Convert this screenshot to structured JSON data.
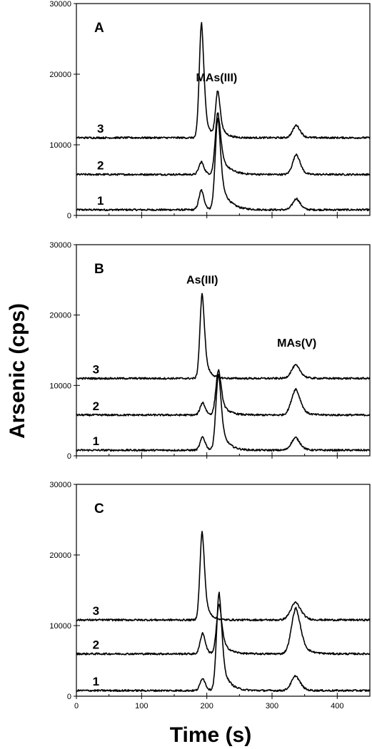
{
  "figure": {
    "ylabel": "Arsenic (cps)",
    "xlabel": "Time (s)"
  },
  "chart_data": [
    {
      "type": "line",
      "panel": "A",
      "xlim": [
        0,
        450
      ],
      "ylim": [
        0,
        30000
      ],
      "x_ticks": [
        0,
        100,
        200,
        300,
        400
      ],
      "y_ticks": [
        0,
        10000,
        20000,
        30000
      ],
      "annotations": [
        {
          "text": "MAs(III)",
          "x": 215,
          "y": 19000
        }
      ],
      "series": [
        {
          "name": "1",
          "baseline": 800,
          "label_x": 37,
          "peaks": [
            {
              "center": 192,
              "height": 2800,
              "width": 4,
              "tail": 5
            },
            {
              "center": 217,
              "height": 13000,
              "width": 4,
              "tail": 12
            },
            {
              "center": 338,
              "height": 1600,
              "width": 6,
              "tail": 6
            }
          ]
        },
        {
          "name": "2",
          "baseline": 5800,
          "label_x": 37,
          "peaks": [
            {
              "center": 192,
              "height": 1800,
              "width": 4,
              "tail": 5
            },
            {
              "center": 217,
              "height": 8800,
              "width": 4,
              "tail": 12
            },
            {
              "center": 338,
              "height": 2900,
              "width": 6,
              "tail": 6
            }
          ]
        },
        {
          "name": "3",
          "baseline": 11000,
          "label_x": 37,
          "peaks": [
            {
              "center": 192,
              "height": 16300,
              "width": 3.5,
              "tail": 7
            },
            {
              "center": 217,
              "height": 6500,
              "width": 3.5,
              "tail": 8
            },
            {
              "center": 338,
              "height": 1800,
              "width": 6,
              "tail": 6
            }
          ]
        }
      ]
    },
    {
      "type": "line",
      "panel": "B",
      "xlim": [
        0,
        450
      ],
      "ylim": [
        0,
        30000
      ],
      "x_ticks": [
        0,
        100,
        200,
        300,
        400
      ],
      "y_ticks": [
        0,
        10000,
        20000,
        30000
      ],
      "annotations": [
        {
          "text": "As(III)",
          "x": 193,
          "y": 24500
        },
        {
          "text": "MAs(V)",
          "x": 338,
          "y": 15500
        }
      ],
      "series": [
        {
          "name": "1",
          "baseline": 800,
          "label_x": 30,
          "peaks": [
            {
              "center": 194,
              "height": 1900,
              "width": 4,
              "tail": 5
            },
            {
              "center": 218,
              "height": 10800,
              "width": 4,
              "tail": 10
            },
            {
              "center": 337,
              "height": 1800,
              "width": 7,
              "tail": 7
            }
          ]
        },
        {
          "name": "2",
          "baseline": 5800,
          "label_x": 30,
          "peaks": [
            {
              "center": 194,
              "height": 1800,
              "width": 4,
              "tail": 5
            },
            {
              "center": 218,
              "height": 6400,
              "width": 4,
              "tail": 10
            },
            {
              "center": 337,
              "height": 3700,
              "width": 7,
              "tail": 9
            }
          ]
        },
        {
          "name": "3",
          "baseline": 11000,
          "label_x": 30,
          "peaks": [
            {
              "center": 193,
              "height": 12000,
              "width": 3.5,
              "tail": 7
            },
            {
              "center": 337,
              "height": 1900,
              "width": 7,
              "tail": 8
            }
          ]
        }
      ]
    },
    {
      "type": "line",
      "panel": "C",
      "xlim": [
        0,
        450
      ],
      "ylim": [
        0,
        30000
      ],
      "x_ticks": [
        0,
        100,
        200,
        300,
        400
      ],
      "y_ticks": [
        0,
        10000,
        20000,
        30000
      ],
      "annotations": [],
      "series": [
        {
          "name": "1",
          "baseline": 800,
          "label_x": 30,
          "peaks": [
            {
              "center": 194,
              "height": 1800,
              "width": 4,
              "tail": 5
            },
            {
              "center": 219,
              "height": 13800,
              "width": 4,
              "tail": 10
            },
            {
              "center": 337,
              "height": 2100,
              "width": 7,
              "tail": 7
            }
          ]
        },
        {
          "name": "2",
          "baseline": 6000,
          "label_x": 30,
          "peaks": [
            {
              "center": 194,
              "height": 3000,
              "width": 4,
              "tail": 5
            },
            {
              "center": 219,
              "height": 7000,
              "width": 4,
              "tail": 10
            },
            {
              "center": 337,
              "height": 6500,
              "width": 7,
              "tail": 11
            }
          ]
        },
        {
          "name": "3",
          "baseline": 10800,
          "label_x": 30,
          "peaks": [
            {
              "center": 193,
              "height": 12500,
              "width": 3.5,
              "tail": 7
            },
            {
              "center": 337,
              "height": 2500,
              "width": 8,
              "tail": 9
            }
          ]
        }
      ]
    }
  ]
}
